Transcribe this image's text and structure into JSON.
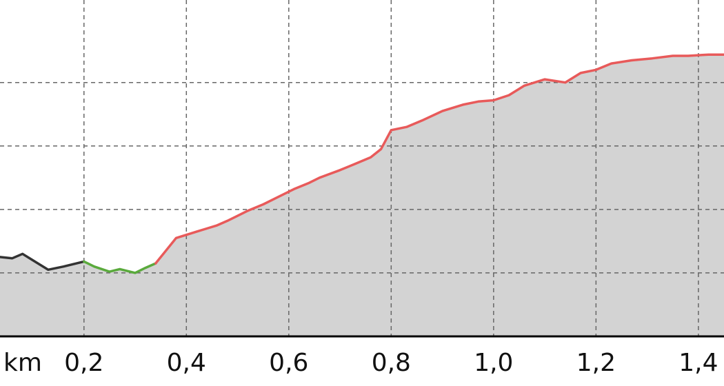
{
  "chart_data": {
    "type": "area",
    "title": "",
    "xlabel": "",
    "ylabel": "",
    "x_unit_label": "km",
    "x_ticks": [
      {
        "value": 0.2,
        "label": "0,2"
      },
      {
        "value": 0.4,
        "label": "0,4"
      },
      {
        "value": 0.6,
        "label": "0,6"
      },
      {
        "value": 0.8,
        "label": "0,8"
      },
      {
        "value": 1.0,
        "label": "1,0"
      },
      {
        "value": 1.2,
        "label": "1,2"
      },
      {
        "value": 1.4,
        "label": "1,4"
      }
    ],
    "y_gridlines": [
      1,
      2,
      3,
      4
    ],
    "xlim": [
      0.036,
      1.45
    ],
    "ylim": [
      0,
      5.3
    ],
    "grid": true,
    "fill_color": "#d3d3d3",
    "profile": [
      [
        0.036,
        1.25
      ],
      [
        0.06,
        1.23
      ],
      [
        0.08,
        1.3
      ],
      [
        0.1,
        1.2
      ],
      [
        0.13,
        1.05
      ],
      [
        0.16,
        1.1
      ],
      [
        0.2,
        1.18
      ],
      [
        0.22,
        1.1
      ],
      [
        0.25,
        1.02
      ],
      [
        0.27,
        1.06
      ],
      [
        0.3,
        1.0
      ],
      [
        0.32,
        1.08
      ],
      [
        0.34,
        1.15
      ],
      [
        0.36,
        1.35
      ],
      [
        0.38,
        1.55
      ],
      [
        0.4,
        1.6
      ],
      [
        0.42,
        1.65
      ],
      [
        0.44,
        1.7
      ],
      [
        0.46,
        1.75
      ],
      [
        0.48,
        1.82
      ],
      [
        0.5,
        1.9
      ],
      [
        0.52,
        1.98
      ],
      [
        0.55,
        2.08
      ],
      [
        0.58,
        2.2
      ],
      [
        0.61,
        2.32
      ],
      [
        0.64,
        2.42
      ],
      [
        0.66,
        2.5
      ],
      [
        0.7,
        2.62
      ],
      [
        0.73,
        2.72
      ],
      [
        0.76,
        2.82
      ],
      [
        0.78,
        2.95
      ],
      [
        0.8,
        3.25
      ],
      [
        0.83,
        3.3
      ],
      [
        0.86,
        3.4
      ],
      [
        0.9,
        3.55
      ],
      [
        0.94,
        3.65
      ],
      [
        0.97,
        3.7
      ],
      [
        1.0,
        3.72
      ],
      [
        1.03,
        3.8
      ],
      [
        1.06,
        3.95
      ],
      [
        1.1,
        4.05
      ],
      [
        1.14,
        4.0
      ],
      [
        1.17,
        4.15
      ],
      [
        1.2,
        4.2
      ],
      [
        1.23,
        4.3
      ],
      [
        1.27,
        4.35
      ],
      [
        1.31,
        4.38
      ],
      [
        1.35,
        4.42
      ],
      [
        1.38,
        4.42
      ],
      [
        1.42,
        4.44
      ],
      [
        1.45,
        4.44
      ]
    ],
    "segments": [
      {
        "x_start": 0.036,
        "x_end": 0.2,
        "color": "#333333"
      },
      {
        "x_start": 0.2,
        "x_end": 0.34,
        "color": "#5aaa3c"
      },
      {
        "x_start": 0.34,
        "x_end": 1.45,
        "color": "#e85a5a"
      }
    ]
  }
}
